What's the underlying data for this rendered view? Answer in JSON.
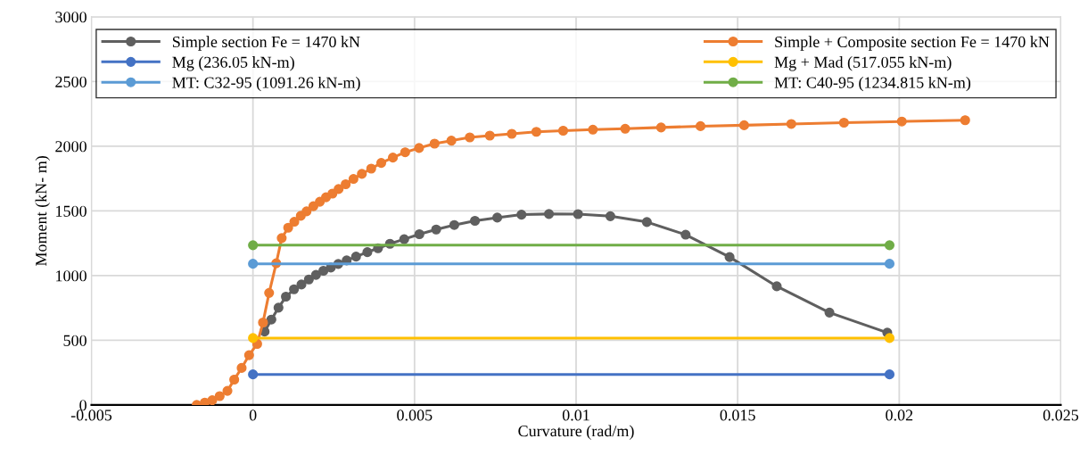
{
  "chart_data": {
    "type": "line",
    "xlabel": "Curvature (rad/m)",
    "ylabel": "Moment (kN- m)",
    "xlim": [
      -0.005,
      0.025
    ],
    "xticks": [
      -0.005,
      0,
      0.005,
      0.01,
      0.015,
      0.02,
      0.025
    ],
    "ylim": [
      0,
      3000
    ],
    "yticks": [
      0,
      500,
      1000,
      1500,
      2000,
      2500,
      3000
    ],
    "grid": true,
    "legend": "top",
    "marker": "circle",
    "line_style": "solid",
    "series": [
      {
        "name": "Simple section Fe = 1470 kN",
        "color": "#5f5f5f",
        "x": [
          0.00036,
          0.00057,
          0.00079,
          0.00102,
          0.00127,
          0.0015,
          0.00173,
          0.00195,
          0.00218,
          0.00241,
          0.00264,
          0.0029,
          0.00319,
          0.00354,
          0.00387,
          0.00424,
          0.00468,
          0.00515,
          0.00567,
          0.00623,
          0.00687,
          0.00756,
          0.00831,
          0.00916,
          0.01006,
          0.01106,
          0.01219,
          0.01339,
          0.01475,
          0.01621,
          0.01784,
          0.01963
        ],
        "values": [
          567,
          660,
          752,
          837,
          894,
          931,
          970,
          1005,
          1037,
          1062,
          1090,
          1117,
          1147,
          1181,
          1211,
          1246,
          1281,
          1320,
          1356,
          1391,
          1423,
          1448,
          1471,
          1476,
          1475,
          1459,
          1414,
          1316,
          1143,
          917,
          714,
          559
        ]
      },
      {
        "name": "Simple + Composite section Fe = 1470 kN",
        "color": "#ed7d31",
        "x": [
          -0.00174,
          -0.00149,
          -0.00126,
          -0.00103,
          -0.00079,
          -0.00058,
          -0.00035,
          -0.00012,
          0.00013,
          0.00031,
          0.0005,
          0.00072,
          0.00089,
          0.00109,
          0.00128,
          0.00148,
          0.00166,
          0.00187,
          0.00207,
          0.00226,
          0.00246,
          0.00265,
          0.00287,
          0.00311,
          0.00337,
          0.00366,
          0.00397,
          0.00433,
          0.00471,
          0.00514,
          0.00562,
          0.00614,
          0.00671,
          0.00733,
          0.00801,
          0.00877,
          0.0096,
          0.01052,
          0.01152,
          0.01263,
          0.01385,
          0.0152,
          0.01666,
          0.01829,
          0.02008,
          0.02204
        ],
        "values": [
          0,
          18,
          36,
          68,
          109,
          196,
          286,
          385,
          472,
          637,
          866,
          1095,
          1290,
          1370,
          1416,
          1462,
          1497,
          1536,
          1571,
          1605,
          1634,
          1669,
          1706,
          1747,
          1786,
          1827,
          1871,
          1912,
          1953,
          1986,
          2020,
          2043,
          2068,
          2082,
          2096,
          2111,
          2120,
          2128,
          2135,
          2145,
          2155,
          2162,
          2172,
          2182,
          2191,
          2201
        ]
      },
      {
        "name": "Mg (236.05 kN-m)",
        "color": "#4472c4",
        "x": [
          0,
          0.0197
        ],
        "values": [
          236.05,
          236.05
        ]
      },
      {
        "name": "Mg + Mad (517.055 kN-m)",
        "color": "#ffc000",
        "x": [
          0,
          0.0197
        ],
        "values": [
          517.055,
          517.055
        ]
      },
      {
        "name": "MT: C32-95 (1091.26 kN-m)",
        "color": "#5b9bd5",
        "x": [
          0,
          0.0197
        ],
        "values": [
          1091.26,
          1091.26
        ]
      },
      {
        "name": "MT: C40-95 (1234.815 kN-m)",
        "color": "#70ad47",
        "x": [
          0,
          0.0197
        ],
        "values": [
          1234.815,
          1234.815
        ]
      }
    ]
  }
}
